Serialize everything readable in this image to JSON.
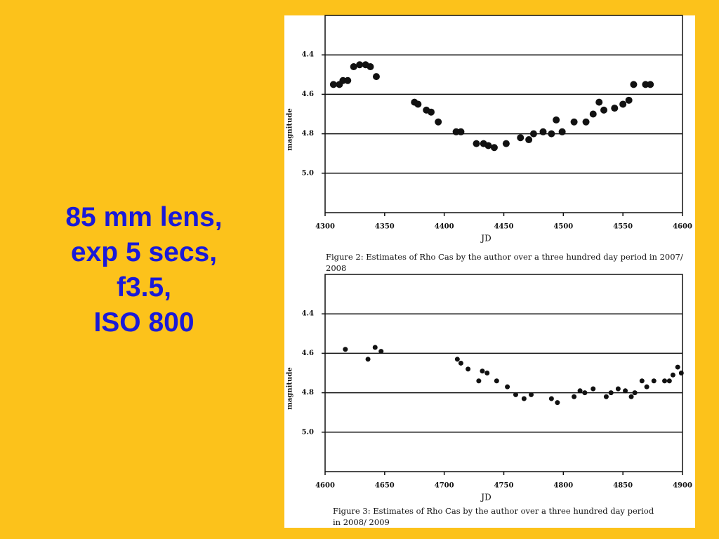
{
  "slide_text": [
    "85 mm lens,",
    "exp 5 secs,",
    "f3.5,",
    "ISO 800"
  ],
  "chart_data": [
    {
      "type": "scatter",
      "x_label": "JD",
      "y_label": "magnitude",
      "caption": "Figure 2: Estimates of Rho Cas by the author over a three hundred day period in 2007/ 2008",
      "color": "#111111",
      "grid": true,
      "y_inverted": true,
      "xlim": [
        4300,
        4600
      ],
      "xticks": [
        4300,
        4350,
        4400,
        4450,
        4500,
        4550,
        4600
      ],
      "ylim": [
        4.2,
        5.2
      ],
      "yticks": [
        4.4,
        4.6,
        4.8,
        {
          "value": 5,
          "label": "5.0"
        }
      ],
      "x": [
        4307,
        4312,
        4315,
        4319,
        4324,
        4329,
        4334,
        4338,
        4343,
        4375,
        4378,
        4385,
        4389,
        4395,
        4410,
        4414,
        4427,
        4433,
        4437,
        4442,
        4452,
        4464,
        4471,
        4475,
        4483,
        4490,
        4494,
        4499,
        4509,
        4519,
        4525,
        4530,
        4534,
        4543,
        4550,
        4555,
        4559,
        4569,
        4573
      ],
      "values": [
        4.55,
        4.55,
        4.53,
        4.53,
        4.46,
        4.45,
        4.45,
        4.46,
        4.51,
        4.64,
        4.65,
        4.68,
        4.69,
        4.74,
        4.79,
        4.79,
        4.85,
        4.85,
        4.86,
        4.87,
        4.85,
        4.82,
        4.83,
        4.8,
        4.79,
        4.8,
        4.73,
        4.79,
        4.74,
        4.74,
        4.7,
        4.64,
        4.68,
        4.67,
        4.65,
        4.63,
        4.55,
        4.55,
        4.55
      ]
    },
    {
      "type": "scatter",
      "x_label": "JD",
      "y_label": "magnitude",
      "caption": "Figure 3: Estimates of Rho Cas by the author over a three hundred day period in 2008/ 2009",
      "color": "#111111",
      "grid": true,
      "y_inverted": true,
      "xlim": [
        4600,
        4900
      ],
      "xticks": [
        4600,
        4650,
        4700,
        4750,
        4800,
        4850,
        4900
      ],
      "ylim": [
        4.2,
        5.2
      ],
      "yticks": [
        4.4,
        4.6,
        4.8,
        {
          "value": 5,
          "label": "5.0"
        }
      ],
      "x": [
        4617,
        4636,
        4642,
        4647,
        4711,
        4714,
        4720,
        4729,
        4732,
        4736,
        4744,
        4753,
        4760,
        4767,
        4773,
        4790,
        4795,
        4809,
        4814,
        4818,
        4825,
        4836,
        4840,
        4846,
        4852,
        4857,
        4860,
        4866,
        4870,
        4876,
        4885,
        4889,
        4892,
        4896,
        4899
      ],
      "values": [
        4.58,
        4.63,
        4.57,
        4.59,
        4.63,
        4.65,
        4.68,
        4.74,
        4.69,
        4.7,
        4.74,
        4.77,
        4.81,
        4.83,
        4.81,
        4.83,
        4.85,
        4.82,
        4.79,
        4.8,
        4.78,
        4.82,
        4.8,
        4.78,
        4.79,
        4.82,
        4.8,
        4.74,
        4.77,
        4.74,
        4.74,
        4.74,
        4.71,
        4.67,
        4.7
      ]
    }
  ]
}
